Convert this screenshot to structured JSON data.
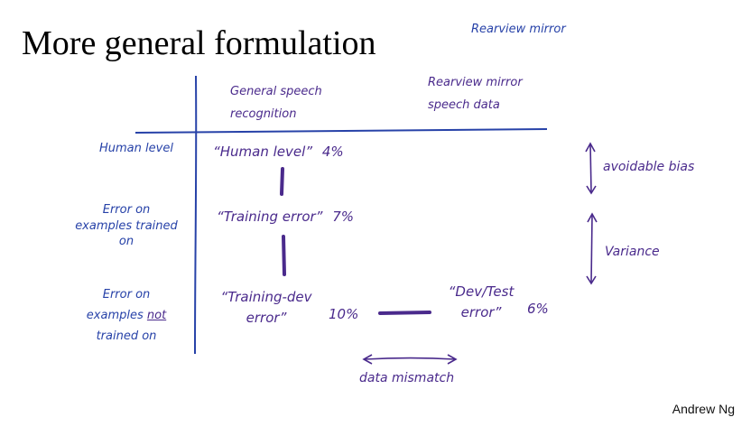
{
  "title": "More general formulation",
  "top_right_note": "Rearview mirror",
  "columns": {
    "general_line1": "General speech",
    "general_line2": "recognition",
    "rearview_line1": "Rearview mirror",
    "rearview_line2": "speech data"
  },
  "rows": {
    "human_level": "Human level",
    "trained_line1": "Error on",
    "trained_line2": "examples trained",
    "trained_line3": "on",
    "not_trained_line1": "Error on",
    "not_trained_line2_a": "examples",
    "not_trained_line2_b": "not",
    "not_trained_line3": "trained on"
  },
  "cells": {
    "human_label": "“Human level”",
    "human_value": "4%",
    "training_label": "“Training error”",
    "training_value": "7%",
    "train_dev_line1": "“Training-dev",
    "train_dev_line2": "error”",
    "train_dev_value": "10%",
    "dev_test_line1": "“Dev/Test",
    "dev_test_line2": "error”",
    "dev_test_value": "6%"
  },
  "annotations": {
    "avoidable_bias": "avoidable bias",
    "variance": "Variance",
    "data_mismatch": "data mismatch"
  },
  "author": "Andrew Ng",
  "colors": {
    "ink_purple": "#4a2a8c",
    "ink_blue": "#2742a8"
  }
}
